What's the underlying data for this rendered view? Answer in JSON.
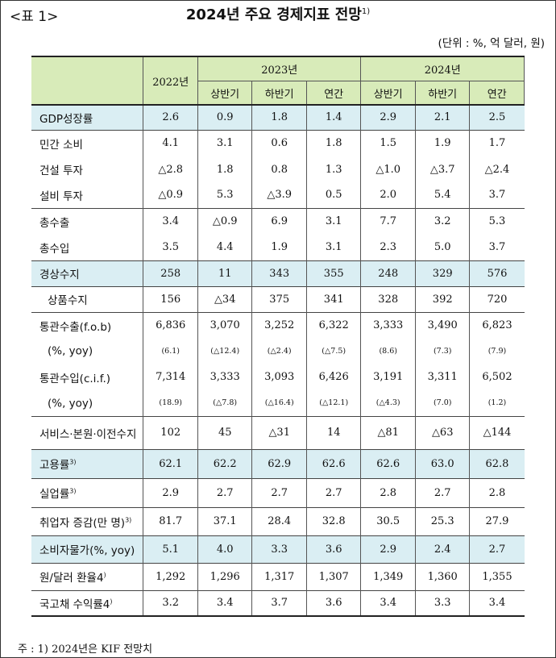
{
  "header": {
    "label": "<표 1>",
    "title": "2024년 주요 경제지표 전망",
    "title_note": "1)",
    "unit": "(단위 : %, 억 달러, 원)"
  },
  "columns": {
    "y2022": "2022년",
    "y2023": "2023년",
    "y2024": "2024년",
    "h1": "상반기",
    "h2": "하반기",
    "annual": "연간"
  },
  "rows": [
    {
      "label": "GDP성장률",
      "note": "",
      "values": [
        "2.6",
        "0.9",
        "1.8",
        "1.4",
        "2.9",
        "2.1",
        "2.5"
      ]
    },
    {
      "label": "민간 소비",
      "note": "",
      "values": [
        "4.1",
        "3.1",
        "0.6",
        "1.8",
        "1.5",
        "1.9",
        "1.7"
      ]
    },
    {
      "label": "건설 투자",
      "note": "",
      "values": [
        "△2.8",
        "1.8",
        "0.8",
        "1.3",
        "△1.0",
        "△3.7",
        "△2.4"
      ]
    },
    {
      "label": "설비 투자",
      "note": "",
      "values": [
        "△0.9",
        "5.3",
        "△3.9",
        "0.5",
        "2.0",
        "5.4",
        "3.7"
      ]
    },
    {
      "label": "총수출",
      "note": "",
      "values": [
        "3.4",
        "△0.9",
        "6.9",
        "3.1",
        "7.7",
        "3.2",
        "5.3"
      ]
    },
    {
      "label": "총수입",
      "note": "",
      "values": [
        "3.5",
        "4.4",
        "1.9",
        "3.1",
        "2.3",
        "5.0",
        "3.7"
      ]
    },
    {
      "label": "경상수지",
      "note": "",
      "values": [
        "258",
        "11",
        "343",
        "355",
        "248",
        "329",
        "576"
      ]
    },
    {
      "label": "상품수지",
      "note": "",
      "values": [
        "156",
        "△34",
        "375",
        "341",
        "328",
        "392",
        "720"
      ]
    },
    {
      "label": "통관수출(f.o.b)",
      "note": "",
      "values": [
        "6,836",
        "3,070",
        "3,252",
        "6,322",
        "3,333",
        "3,490",
        "6,823"
      ]
    },
    {
      "label": "(%, yoy)",
      "note": "",
      "values": [
        "(6.1)",
        "(△12.4)",
        "(△2.4)",
        "(△7.5)",
        "(8.6)",
        "(7.3)",
        "(7.9)"
      ]
    },
    {
      "label": "통관수입(c.i.f.)",
      "note": "",
      "values": [
        "7,314",
        "3,333",
        "3,093",
        "6,426",
        "3,191",
        "3,311",
        "6,502"
      ]
    },
    {
      "label": "(%, yoy)",
      "note": "",
      "values": [
        "(18.9)",
        "(△7.8)",
        "(△16.4)",
        "(△12.1)",
        "(△4.3)",
        "(7.0)",
        "(1.2)"
      ]
    },
    {
      "label": "서비스·본원·이전수지",
      "note": "",
      "values": [
        "102",
        "45",
        "△31",
        "14",
        "△81",
        "△63",
        "△144"
      ]
    },
    {
      "label": "고용률",
      "note": "3)",
      "values": [
        "62.1",
        "62.2",
        "62.9",
        "62.6",
        "62.6",
        "63.0",
        "62.8"
      ]
    },
    {
      "label": "실업률",
      "note": "3)",
      "values": [
        "2.9",
        "2.7",
        "2.7",
        "2.7",
        "2.8",
        "2.7",
        "2.8"
      ]
    },
    {
      "label": "취업자 증감(만 명)",
      "note": "3)",
      "values": [
        "81.7",
        "37.1",
        "28.4",
        "32.8",
        "30.5",
        "25.3",
        "27.9"
      ]
    },
    {
      "label": "소비자물가(%, yoy)",
      "note": "",
      "values": [
        "5.1",
        "4.0",
        "3.3",
        "3.6",
        "2.9",
        "2.4",
        "2.7"
      ]
    },
    {
      "label": "원/달러 환율4",
      "note": ")",
      "values": [
        "1,292",
        "1,296",
        "1,317",
        "1,307",
        "1,349",
        "1,360",
        "1,355"
      ]
    },
    {
      "label": "국고채 수익률4",
      "note": ")",
      "values": [
        "3.2",
        "3.4",
        "3.7",
        "3.6",
        "3.4",
        "3.3",
        "3.4"
      ]
    }
  ],
  "footnote": "주 : 1) 2024년은 KIF 전망치"
}
